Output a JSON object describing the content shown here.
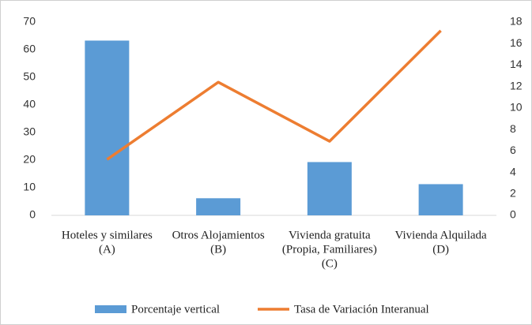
{
  "chart_data": {
    "type": "bar",
    "categories": [
      [
        "Hoteles y similares",
        "(A)"
      ],
      [
        "Otros Alojamientos",
        "(B)"
      ],
      [
        "Vivienda gratuita",
        "(Propia, Familiares)",
        "(C)"
      ],
      [
        "Vivienda Alquilada",
        "(D)"
      ]
    ],
    "series": [
      {
        "name": "Porcentaje vertical",
        "type": "bar",
        "color": "#5b9bd5",
        "values": [
          63.3,
          6.2,
          19.3,
          11.3
        ]
      },
      {
        "name": "Tasa de Variación Interanual",
        "type": "line",
        "axis": "y2",
        "color": "#ed7d31",
        "values": [
          5.2,
          12.4,
          6.9,
          17.2
        ]
      }
    ],
    "ylim": [
      0,
      70
    ],
    "yticks": [
      0,
      10,
      20,
      30,
      40,
      50,
      60,
      70
    ],
    "y2lim": [
      0,
      18
    ],
    "y2ticks": [
      0,
      2,
      4,
      6,
      8,
      10,
      12,
      14,
      16,
      18
    ],
    "grid": false,
    "legend": "bottom"
  }
}
